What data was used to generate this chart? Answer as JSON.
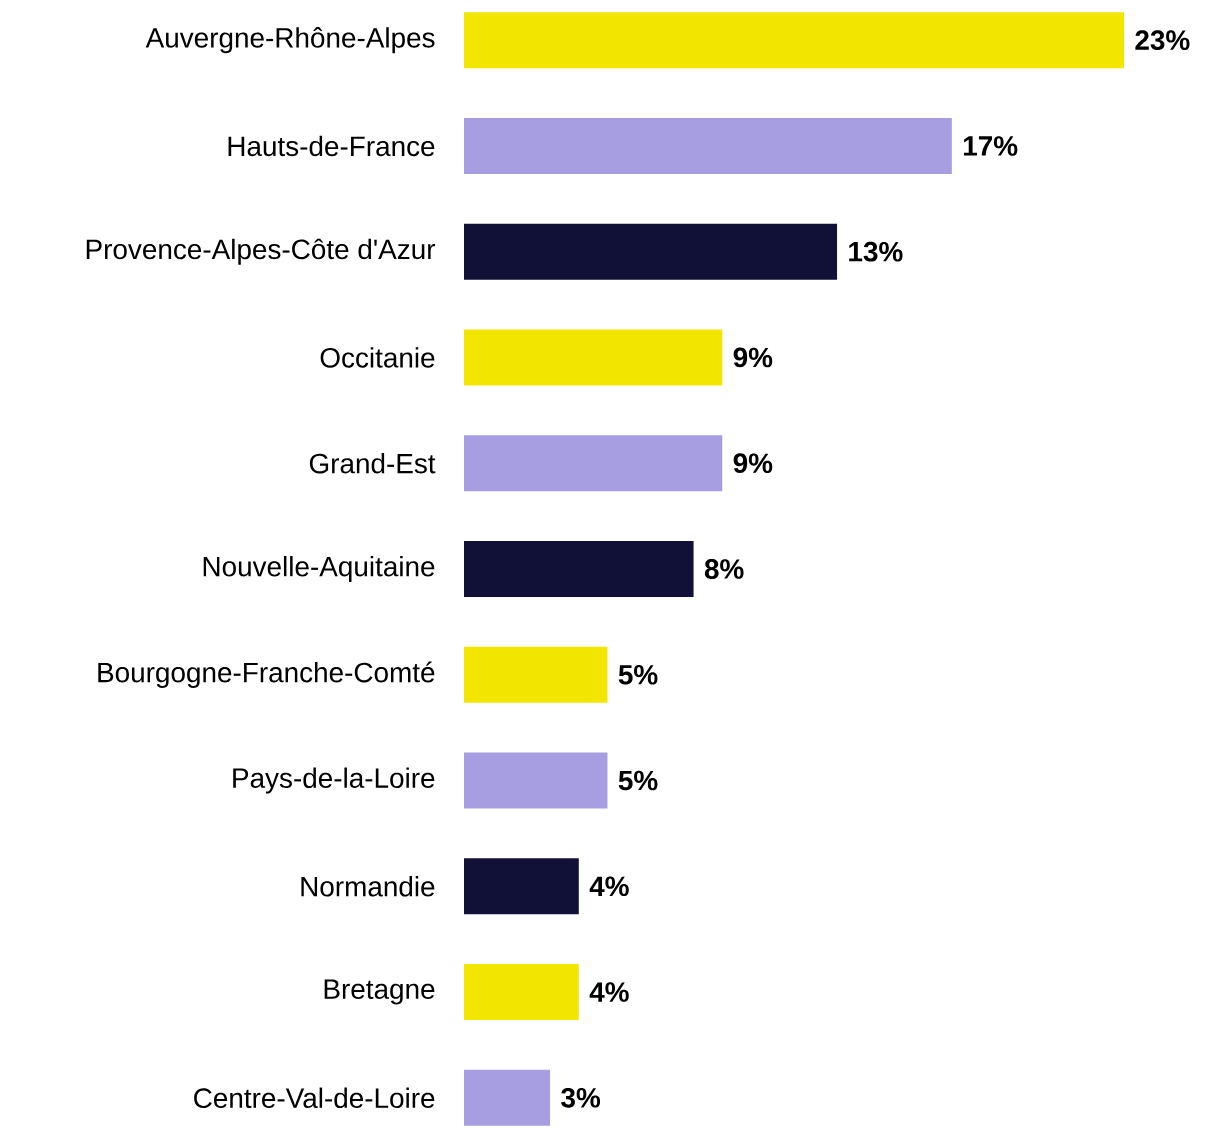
{
  "chart_data": {
    "type": "bar",
    "orientation": "horizontal",
    "categories": [
      "Auvergne-Rhône-Alpes",
      "Hauts-de-France",
      "Provence-Alpes-Côte d'Azur",
      "Occitanie",
      "Grand-Est",
      "Nouvelle-Aquitaine",
      "Bourgogne-Franche-Comté",
      "Pays-de-la-Loire",
      "Normandie",
      "Bretagne",
      "Centre-Val-de-Loire"
    ],
    "values": [
      23,
      17,
      13,
      9,
      9,
      8,
      5,
      5,
      4,
      4,
      3
    ],
    "value_labels": [
      "23%",
      "17%",
      "13%",
      "9%",
      "9%",
      "8%",
      "5%",
      "5%",
      "4%",
      "4%",
      "3%"
    ],
    "colors": [
      "#f2e600",
      "#a69ee0",
      "#111138",
      "#f2e600",
      "#a69ee0",
      "#111138",
      "#f2e600",
      "#a69ee0",
      "#111138",
      "#f2e600",
      "#a69ee0"
    ]
  }
}
